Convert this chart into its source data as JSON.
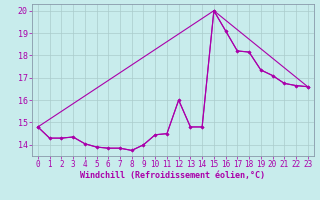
{
  "xlabel": "Windchill (Refroidissement éolien,°C)",
  "bg_color": "#c8ecec",
  "line_color": "#aa00aa",
  "grid_color": "#aacccc",
  "spine_color": "#8899aa",
  "xlim": [
    -0.5,
    23.5
  ],
  "ylim": [
    13.5,
    20.3
  ],
  "yticks": [
    14,
    15,
    16,
    17,
    18,
    19,
    20
  ],
  "xticks": [
    0,
    1,
    2,
    3,
    4,
    5,
    6,
    7,
    8,
    9,
    10,
    11,
    12,
    13,
    14,
    15,
    16,
    17,
    18,
    19,
    20,
    21,
    22,
    23
  ],
  "series1_x": [
    0,
    1,
    2,
    3,
    4,
    5,
    6,
    7,
    8,
    9,
    10,
    11,
    12,
    13,
    14,
    15,
    16,
    17,
    18,
    19,
    20,
    21,
    22,
    23
  ],
  "series1_y": [
    14.8,
    14.3,
    14.3,
    14.35,
    14.05,
    13.9,
    13.85,
    13.85,
    13.75,
    14.0,
    14.45,
    14.5,
    16.0,
    14.8,
    14.8,
    20.0,
    19.1,
    18.2,
    18.15,
    17.35,
    17.1,
    16.75,
    16.65,
    16.6
  ],
  "series2_x": [
    0,
    15,
    16,
    17,
    18,
    19,
    20,
    21,
    22,
    23
  ],
  "series2_y": [
    14.8,
    20.0,
    19.1,
    18.2,
    18.15,
    17.35,
    17.1,
    16.75,
    16.65,
    16.6
  ],
  "series3_x": [
    0,
    1,
    2,
    3,
    4,
    5,
    6,
    7,
    8,
    9,
    10,
    11,
    12,
    13,
    14,
    15,
    23
  ],
  "series3_y": [
    14.8,
    14.3,
    14.3,
    14.35,
    14.05,
    13.9,
    13.85,
    13.85,
    13.75,
    14.0,
    14.45,
    14.5,
    16.0,
    14.8,
    14.8,
    20.0,
    16.6
  ]
}
